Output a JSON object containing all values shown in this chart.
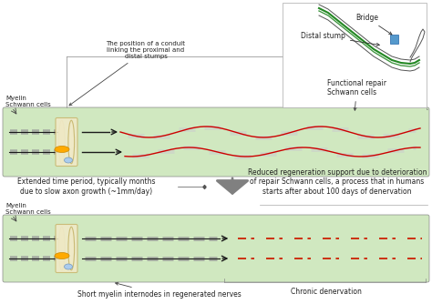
{
  "bg_color": "#ffffff",
  "nerve_bg": "#d0e8c0",
  "conduit_fill": "#f0eac8",
  "conduit_edge": "#c8b870",
  "axon_red": "#cc0000",
  "axon_dark": "#1a1a1a",
  "myelin_gray": "#888888",
  "myelin_light": "#aaaaaa",
  "dashed_red": "#cc2200",
  "text_col": "#222222",
  "orange_col": "#ffaa00",
  "blue_col": "#aaccee",
  "arrow_col": "#808080",
  "label_bridge": "Bridge",
  "label_distal": "Distal stump",
  "label_myelin": "Myelin\nSchwann cells",
  "label_functional": "Functional repair\nSchwann cells",
  "label_conduit": "The position of a conduit\nlinking the proximal and\ndistal stumps",
  "label_extended": "Extended time period, typically months\ndue to slow axon growth (~1mm/day)",
  "label_reduced": "Reduced regeneration support due to deterioration\nof repair Schwann cells, a process that in humans\nstarts after about 100 days of denervation",
  "label_short": "Short myelin internodes in regenerated nerves",
  "label_chronic": "Chronic denervation"
}
